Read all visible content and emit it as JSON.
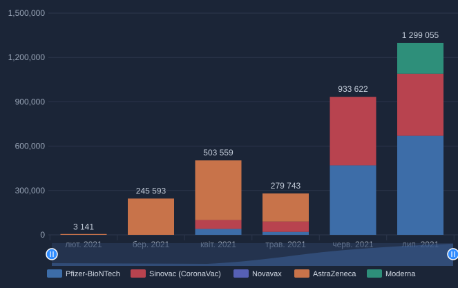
{
  "chart_data": {
    "type": "bar",
    "stacked": true,
    "categories": [
      "лют. 2021",
      "бер. 2021",
      "квіт. 2021",
      "трав. 2021",
      "черв. 2021",
      "лип. 2021"
    ],
    "series": [
      {
        "name": "Pfizer-BioNTech",
        "color": "#3d6da8",
        "values": [
          0,
          0,
          40000,
          20000,
          470000,
          670000
        ]
      },
      {
        "name": "Sinovac (CoronaVac)",
        "color": "#b8434f",
        "values": [
          0,
          0,
          60000,
          70000,
          463622,
          420000
        ]
      },
      {
        "name": "Novavax",
        "color": "#5660b5",
        "values": [
          0,
          0,
          0,
          0,
          0,
          0
        ]
      },
      {
        "name": "AstraZeneca",
        "color": "#c8734a",
        "values": [
          3141,
          245593,
          403559,
          189743,
          0,
          0
        ]
      },
      {
        "name": "Moderna",
        "color": "#2e8f7a",
        "values": [
          0,
          0,
          0,
          0,
          0,
          209055
        ]
      }
    ],
    "totals": [
      "3 141",
      "245 593",
      "503 559",
      "279 743",
      "933 622",
      "1 299 055"
    ],
    "y_ticks": [
      {
        "value": 0,
        "label": "0"
      },
      {
        "value": 300000,
        "label": "300,000"
      },
      {
        "value": 600000,
        "label": "600,000"
      },
      {
        "value": 900000,
        "label": "900,000"
      },
      {
        "value": 1200000,
        "label": "1,200,000"
      },
      {
        "value": 1500000,
        "label": "1,500,000"
      }
    ],
    "ylim": [
      0,
      1500000
    ],
    "grid": true,
    "legend_position": "bottom",
    "navigator": true,
    "colors": {
      "background": "#1b2537",
      "grid": "#2c374c",
      "navigator_mask": "#2b3f63",
      "navigator_handle": "#2f8cff"
    }
  }
}
